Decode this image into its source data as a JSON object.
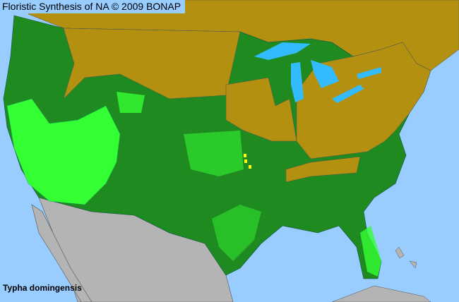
{
  "header": {
    "title": "Floristic Synthesis of NA © 2009 BONAP"
  },
  "species": {
    "name": "Typha domingensis"
  },
  "legend_colors": {
    "ocean": "#99ccff",
    "not_present": "#b3900f",
    "present_in_state": "#1f8a1f",
    "present_in_county": "#33ff33",
    "rare": "#ffff00",
    "outside_area": "#b4b4b4"
  }
}
